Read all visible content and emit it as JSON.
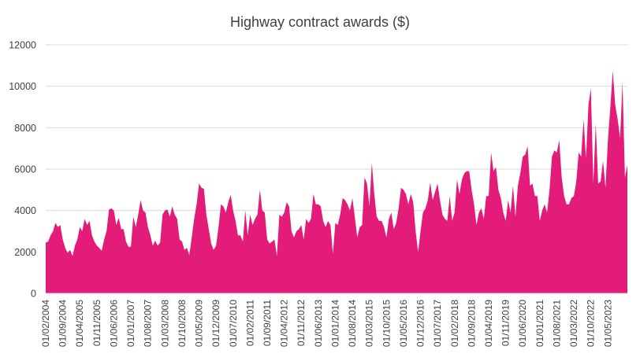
{
  "chart_data": {
    "type": "area",
    "title": "Highway contract awards ($)",
    "xlabel": "",
    "ylabel": "",
    "ylim": [
      0,
      12000
    ],
    "y_ticks": [
      0,
      2000,
      4000,
      6000,
      8000,
      10000,
      12000
    ],
    "grid": "horizontal",
    "color": "#e31c79",
    "x_start": "01/02/2004",
    "x_end": "01/11/2023",
    "x_tick_labels": [
      "01/02/2004",
      "01/09/2004",
      "01/04/2005",
      "01/11/2005",
      "01/06/2006",
      "01/01/2007",
      "01/08/2007",
      "01/03/2008",
      "01/10/2008",
      "01/05/2009",
      "01/12/2009",
      "01/07/2010",
      "01/02/2011",
      "01/09/2011",
      "01/04/2012",
      "01/11/2012",
      "01/06/2013",
      "01/01/2014",
      "01/08/2014",
      "01/03/2015",
      "01/10/2015",
      "01/05/2016",
      "01/12/2016",
      "01/07/2017",
      "01/02/2018",
      "01/09/2018",
      "01/04/2019",
      "01/11/2019",
      "01/06/2020",
      "01/01/2021",
      "01/08/2021",
      "01/03/2022",
      "01/10/2022",
      "01/05/2023"
    ],
    "series": [
      {
        "name": "",
        "values": [
          2450,
          2500,
          2800,
          3000,
          3400,
          3200,
          3300,
          2600,
          2200,
          1950,
          2100,
          1800,
          2300,
          2600,
          3200,
          3000,
          3600,
          3300,
          3500,
          2800,
          2500,
          2300,
          2200,
          2050,
          2600,
          3000,
          4050,
          4100,
          4000,
          3300,
          3650,
          3100,
          3100,
          2500,
          2250,
          2250,
          3700,
          3200,
          3800,
          4500,
          4000,
          3900,
          3200,
          2800,
          2300,
          2550,
          2300,
          2450,
          3800,
          4000,
          4050,
          3700,
          4200,
          3800,
          3600,
          2600,
          2500,
          2100,
          2200,
          1850,
          2700,
          3600,
          4300,
          5300,
          5100,
          5050,
          3800,
          3100,
          2400,
          2100,
          2300,
          3200,
          4300,
          4200,
          3900,
          4400,
          4750,
          4000,
          3500,
          2800,
          2800,
          2500,
          4000,
          2800,
          3800,
          3300,
          3600,
          3800,
          5000,
          4000,
          3900,
          2600,
          2400,
          2500,
          2600,
          1800,
          3800,
          3700,
          3900,
          4400,
          4200,
          3000,
          2700,
          3000,
          3100,
          3300,
          2600,
          3600,
          3400,
          3600,
          4800,
          4300,
          4300,
          4200,
          3500,
          3200,
          3500,
          3300,
          1900,
          3400,
          3300,
          3800,
          4600,
          4500,
          4300,
          4000,
          4600,
          3700,
          2700,
          3200,
          3300,
          5600,
          5300,
          4200,
          6300,
          4800,
          3700,
          3500,
          3500,
          3200,
          2700,
          3600,
          3900,
          3100,
          3400,
          4100,
          5100,
          5000,
          4800,
          4300,
          4800,
          4400,
          3000,
          2000,
          3000,
          3900,
          4100,
          4500,
          5350,
          4500,
          4900,
          5300,
          4500,
          3800,
          3600,
          3500,
          4700,
          3500,
          3900,
          5500,
          4800,
          5500,
          5800,
          5900,
          5900,
          5000,
          4300,
          3300,
          3900,
          4100,
          3600,
          4700,
          4700,
          6800,
          5900,
          6100,
          5000,
          4600,
          3900,
          3500,
          4500,
          3900,
          5200,
          3700,
          5200,
          5800,
          6600,
          6700,
          7100,
          5200,
          5300,
          4700,
          4700,
          3500,
          4000,
          4300,
          3900,
          5000,
          6600,
          6900,
          6800,
          7400,
          5600,
          4700,
          4300,
          4300,
          4600,
          4700,
          5400,
          6800,
          6600,
          8400,
          6500,
          9100,
          9900,
          5300,
          8200,
          5300,
          5400,
          6400,
          5100,
          7400,
          9000,
          10750,
          9100,
          8400,
          7500,
          10200,
          5600,
          6200
        ]
      }
    ]
  }
}
